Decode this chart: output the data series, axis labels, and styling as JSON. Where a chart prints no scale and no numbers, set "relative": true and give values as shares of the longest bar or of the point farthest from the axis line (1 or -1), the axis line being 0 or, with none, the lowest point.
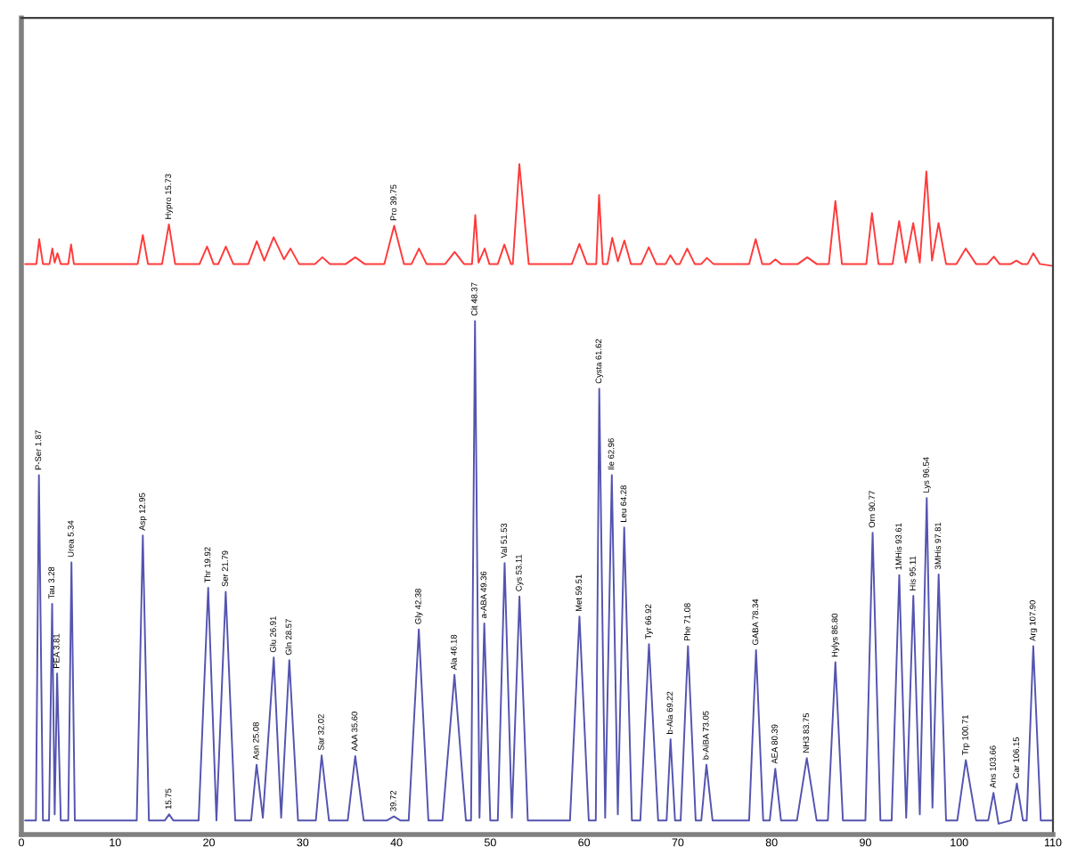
{
  "chart_data": {
    "type": "line",
    "relative": true,
    "xlim": [
      0,
      110
    ],
    "xticks": [
      0,
      10,
      20,
      30,
      40,
      50,
      60,
      70,
      80,
      90,
      100,
      110
    ],
    "tick_labels": "x",
    "series": [
      {
        "color": "#ff3a3a",
        "x": [
          0.4,
          1.6,
          1.9,
          2.3,
          3.0,
          3.3,
          3.55,
          3.85,
          4.2,
          5.0,
          5.3,
          5.6,
          12.4,
          12.95,
          13.5,
          15.0,
          15.73,
          16.4,
          19.0,
          19.8,
          20.5,
          21.0,
          21.8,
          22.6,
          24.2,
          25.1,
          25.9,
          26.9,
          28.0,
          28.7,
          29.6,
          31.3,
          32.1,
          32.9,
          34.6,
          35.6,
          36.6,
          38.7,
          39.75,
          40.8,
          41.6,
          42.4,
          43.2,
          45.2,
          46.2,
          47.2,
          48.05,
          48.4,
          48.75,
          49.4,
          49.9,
          50.8,
          51.5,
          52.2,
          52.4,
          53.1,
          54.1,
          58.7,
          59.5,
          60.3,
          61.3,
          61.6,
          62.0,
          62.5,
          63.0,
          63.6,
          64.3,
          65.0,
          66.1,
          66.9,
          67.7,
          68.7,
          69.2,
          69.8,
          70.2,
          71.0,
          71.8,
          72.5,
          73.1,
          73.8,
          77.6,
          78.3,
          79.0,
          79.8,
          80.4,
          81.0,
          82.8,
          83.8,
          84.8,
          86.1,
          86.8,
          87.5,
          90.1,
          90.7,
          91.4,
          92.9,
          93.6,
          94.3,
          95.1,
          95.8,
          96.5,
          97.1,
          97.8,
          98.6,
          99.7,
          100.7,
          101.8,
          103.0,
          103.7,
          104.3,
          105.5,
          106.1,
          106.7,
          107.3,
          107.9,
          108.6,
          110.0
        ],
        "values": [
          0.851,
          0.851,
          0.888,
          0.851,
          0.851,
          0.874,
          0.853,
          0.867,
          0.851,
          0.851,
          0.88,
          0.851,
          0.851,
          0.894,
          0.851,
          0.851,
          0.91,
          0.851,
          0.851,
          0.877,
          0.851,
          0.851,
          0.877,
          0.851,
          0.851,
          0.885,
          0.856,
          0.891,
          0.858,
          0.874,
          0.851,
          0.851,
          0.861,
          0.851,
          0.851,
          0.861,
          0.851,
          0.851,
          0.908,
          0.851,
          0.851,
          0.874,
          0.851,
          0.851,
          0.869,
          0.851,
          0.851,
          0.924,
          0.853,
          0.874,
          0.851,
          0.851,
          0.88,
          0.851,
          0.851,
          1.0,
          0.851,
          0.851,
          0.881,
          0.851,
          0.851,
          0.954,
          0.851,
          0.851,
          0.89,
          0.855,
          0.886,
          0.851,
          0.851,
          0.876,
          0.851,
          0.851,
          0.864,
          0.851,
          0.851,
          0.874,
          0.851,
          0.851,
          0.86,
          0.851,
          0.851,
          0.888,
          0.851,
          0.851,
          0.858,
          0.851,
          0.851,
          0.861,
          0.851,
          0.851,
          0.945,
          0.851,
          0.851,
          0.927,
          0.851,
          0.851,
          0.915,
          0.853,
          0.912,
          0.853,
          0.989,
          0.856,
          0.912,
          0.851,
          0.851,
          0.874,
          0.851,
          0.851,
          0.862,
          0.851,
          0.851,
          0.856,
          0.851,
          0.851,
          0.867,
          0.851,
          0.848
        ]
      },
      {
        "color": "#5454b0",
        "x": [
          0.4,
          1.55,
          1.87,
          2.3,
          2.95,
          3.28,
          3.55,
          3.81,
          4.2,
          5.0,
          5.34,
          5.7,
          12.3,
          12.95,
          13.6,
          15.3,
          15.75,
          16.2,
          18.9,
          19.92,
          20.8,
          21.79,
          22.8,
          24.5,
          25.08,
          25.75,
          26.91,
          27.7,
          28.57,
          29.5,
          31.4,
          32.02,
          32.8,
          34.8,
          35.6,
          36.5,
          39.0,
          39.72,
          40.4,
          41.3,
          42.38,
          43.4,
          44.9,
          46.18,
          47.4,
          47.95,
          48.37,
          48.85,
          49.36,
          50.0,
          50.8,
          51.53,
          52.3,
          53.11,
          54.0,
          58.5,
          59.51,
          60.5,
          61.25,
          61.62,
          62.25,
          62.96,
          63.6,
          64.28,
          65.1,
          66.0,
          66.92,
          67.9,
          68.8,
          69.22,
          69.7,
          70.3,
          71.08,
          71.9,
          72.5,
          73.05,
          73.7,
          77.6,
          78.34,
          79.1,
          79.8,
          80.39,
          81.0,
          82.7,
          83.75,
          84.8,
          86.0,
          86.8,
          87.6,
          90.0,
          90.77,
          91.6,
          92.8,
          93.61,
          94.35,
          95.11,
          95.8,
          96.54,
          97.15,
          97.81,
          98.6,
          99.8,
          100.71,
          101.8,
          103.1,
          103.66,
          104.2,
          105.5,
          106.15,
          106.8,
          107.2,
          107.9,
          108.7,
          109.9
        ],
        "values": [
          0.021,
          0.021,
          0.536,
          0.021,
          0.021,
          0.344,
          0.03,
          0.24,
          0.021,
          0.021,
          0.406,
          0.021,
          0.021,
          0.446,
          0.021,
          0.021,
          0.03,
          0.021,
          0.021,
          0.368,
          0.021,
          0.362,
          0.021,
          0.021,
          0.104,
          0.025,
          0.264,
          0.025,
          0.26,
          0.021,
          0.021,
          0.118,
          0.021,
          0.021,
          0.117,
          0.021,
          0.021,
          0.027,
          0.021,
          0.021,
          0.306,
          0.021,
          0.021,
          0.238,
          0.021,
          0.021,
          0.766,
          0.025,
          0.315,
          0.021,
          0.021,
          0.405,
          0.025,
          0.355,
          0.021,
          0.021,
          0.325,
          0.021,
          0.021,
          0.665,
          0.025,
          0.536,
          0.03,
          0.458,
          0.021,
          0.021,
          0.284,
          0.021,
          0.021,
          0.142,
          0.021,
          0.021,
          0.281,
          0.021,
          0.021,
          0.104,
          0.021,
          0.021,
          0.275,
          0.021,
          0.021,
          0.098,
          0.021,
          0.021,
          0.114,
          0.021,
          0.021,
          0.257,
          0.021,
          0.021,
          0.45,
          0.021,
          0.021,
          0.387,
          0.025,
          0.356,
          0.03,
          0.502,
          0.04,
          0.388,
          0.021,
          0.021,
          0.111,
          0.021,
          0.021,
          0.062,
          0.016,
          0.021,
          0.076,
          0.021,
          0.021,
          0.281,
          0.021,
          0.021
        ]
      }
    ],
    "annotations": [
      {
        "text": "Hypro 15.73",
        "x": 15.73,
        "y": 0.91
      },
      {
        "text": "Pro 39.75",
        "x": 39.75,
        "y": 0.908
      },
      {
        "text": "P-Ser 1.87",
        "x": 1.87,
        "y": 0.536
      },
      {
        "text": "Tau 3.28",
        "x": 3.28,
        "y": 0.344
      },
      {
        "text": "PEA 3.81",
        "x": 3.81,
        "y": 0.24
      },
      {
        "text": "Urea 5.34",
        "x": 5.34,
        "y": 0.406
      },
      {
        "text": "Asp 12.95",
        "x": 12.95,
        "y": 0.446
      },
      {
        "text": "15.75",
        "x": 15.75,
        "y": 0.03
      },
      {
        "text": "Thr 19.92",
        "x": 19.92,
        "y": 0.368
      },
      {
        "text": "Ser 21.79",
        "x": 21.79,
        "y": 0.362
      },
      {
        "text": "Asn 25.08",
        "x": 25.08,
        "y": 0.104
      },
      {
        "text": "Glu 26.91",
        "x": 26.91,
        "y": 0.264
      },
      {
        "text": "Gln 28.57",
        "x": 28.57,
        "y": 0.26
      },
      {
        "text": "Sar 32.02",
        "x": 32.02,
        "y": 0.118
      },
      {
        "text": "AAA 35.60",
        "x": 35.6,
        "y": 0.117
      },
      {
        "text": "39.72",
        "x": 39.72,
        "y": 0.027
      },
      {
        "text": "Gly 42.38",
        "x": 42.38,
        "y": 0.306
      },
      {
        "text": "Ala 46.18",
        "x": 46.18,
        "y": 0.238
      },
      {
        "text": "Cit 48.37",
        "x": 48.37,
        "y": 0.766
      },
      {
        "text": "a-ABA 49.36",
        "x": 49.36,
        "y": 0.315
      },
      {
        "text": "Val 51.53",
        "x": 51.53,
        "y": 0.405
      },
      {
        "text": "Cys 53.11",
        "x": 53.11,
        "y": 0.355
      },
      {
        "text": "Met 59.51",
        "x": 59.51,
        "y": 0.325
      },
      {
        "text": "Cysta 61.62",
        "x": 61.62,
        "y": 0.665
      },
      {
        "text": "Ile 62.96",
        "x": 62.96,
        "y": 0.536
      },
      {
        "text": "Leu 64.28",
        "x": 64.28,
        "y": 0.458
      },
      {
        "text": "Tyr 66.92",
        "x": 66.92,
        "y": 0.284
      },
      {
        "text": "b-Ala 69.22",
        "x": 69.22,
        "y": 0.142
      },
      {
        "text": "Phe 71.08",
        "x": 71.08,
        "y": 0.281
      },
      {
        "text": "b-AiBA 73.05",
        "x": 73.05,
        "y": 0.104
      },
      {
        "text": "GABA 78.34",
        "x": 78.34,
        "y": 0.275
      },
      {
        "text": "AEA 80.39",
        "x": 80.39,
        "y": 0.098
      },
      {
        "text": "NH3 83.75",
        "x": 83.75,
        "y": 0.114
      },
      {
        "text": "Hylys 86.80",
        "x": 86.8,
        "y": 0.257
      },
      {
        "text": "Orn 90.77",
        "x": 90.77,
        "y": 0.45
      },
      {
        "text": "1MHis 93.61",
        "x": 93.61,
        "y": 0.387
      },
      {
        "text": "His 95.11",
        "x": 95.11,
        "y": 0.356
      },
      {
        "text": "Lys 96.54",
        "x": 96.54,
        "y": 0.502
      },
      {
        "text": "3MHis 97.81",
        "x": 97.81,
        "y": 0.388
      },
      {
        "text": "Trp 100.71",
        "x": 100.71,
        "y": 0.111
      },
      {
        "text": "Ans 103.66",
        "x": 103.66,
        "y": 0.062
      },
      {
        "text": "Car 106.15",
        "x": 106.15,
        "y": 0.076
      },
      {
        "text": "Arg 107.90",
        "x": 107.9,
        "y": 0.281
      }
    ]
  }
}
